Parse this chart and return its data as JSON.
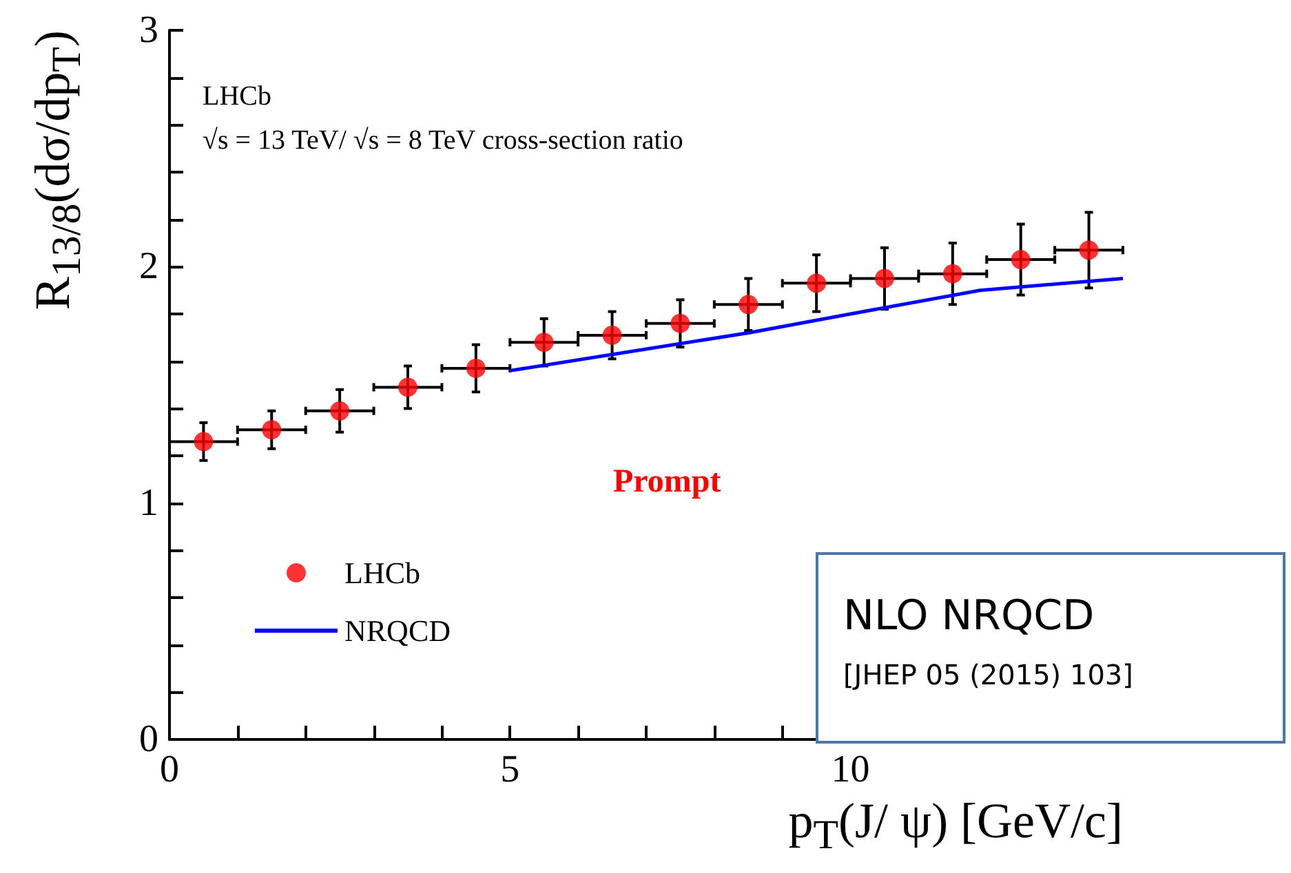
{
  "chart_data": {
    "type": "scatter",
    "xlabel": "p$_{T}$(J/ ψ) [GeV/c]",
    "ylabel": "R$_{13/8}$(dσ/dp$_{T}$)",
    "annotations": [
      "LHCb",
      "√s = 13 TeV/ √s = 8 TeV cross-section ratio",
      "Prompt",
      "NLO NRQCD",
      "[JHEP  05 (2015) 103]"
    ],
    "xlim": [
      0,
      14
    ],
    "ylim": [
      0,
      3
    ],
    "xticks": [
      0,
      {
        "value": 1,
        "label": null
      },
      {
        "value": 2,
        "label": null
      },
      {
        "value": 3,
        "label": null
      },
      {
        "value": 4,
        "label": null
      },
      5,
      {
        "value": 6,
        "label": null
      },
      {
        "value": 7,
        "label": null
      },
      {
        "value": 8,
        "label": null
      },
      {
        "value": 9,
        "label": null
      },
      10,
      {
        "value": 11,
        "label": null
      },
      {
        "value": 12,
        "label": null
      },
      {
        "value": 13,
        "label": null
      }
    ],
    "yticks": [
      0,
      {
        "value": 0.2,
        "label": null
      },
      {
        "value": 0.4,
        "label": null
      },
      {
        "value": 0.6,
        "label": null
      },
      {
        "value": 0.8,
        "label": null
      },
      1,
      {
        "value": 1.2,
        "label": null
      },
      {
        "value": 1.4,
        "label": null
      },
      {
        "value": 1.6,
        "label": null
      },
      {
        "value": 1.8,
        "label": null
      },
      2,
      {
        "value": 2.2,
        "label": null
      },
      {
        "value": 2.4,
        "label": null
      },
      {
        "value": 2.6,
        "label": null
      },
      {
        "value": 2.8,
        "label": null
      },
      3
    ],
    "grid": false,
    "legend": "bottom left",
    "line_style": "solid",
    "series": [
      {
        "name": "LHCb",
        "type": "scatter",
        "marker": "circle",
        "color": "#ff0000",
        "x": [
          0.5,
          1.5,
          2.5,
          3.5,
          4.5,
          5.5,
          6.5,
          7.5,
          8.5,
          9.5,
          10.5,
          11.5,
          12.5,
          13.5
        ],
        "values": [
          1.26,
          1.31,
          1.39,
          1.49,
          1.57,
          1.68,
          1.71,
          1.76,
          1.84,
          1.93,
          1.95,
          1.97,
          2.03,
          2.07
        ],
        "errors": [
          0.08,
          0.08,
          0.09,
          0.09,
          0.1,
          0.1,
          0.1,
          0.1,
          0.11,
          0.12,
          0.13,
          0.13,
          0.15,
          0.16
        ],
        "xerrors": [
          0.5,
          0.5,
          0.5,
          0.5,
          0.5,
          0.5,
          0.5,
          0.5,
          0.5,
          0.5,
          0.5,
          0.5,
          0.5,
          0.5
        ]
      },
      {
        "name": "NRQCD",
        "type": "line",
        "color": "#0000ff",
        "x": [
          5,
          8.5,
          10,
          11.9,
          14
        ],
        "values": [
          1.56,
          1.72,
          1.8,
          1.9,
          1.95
        ]
      }
    ]
  }
}
